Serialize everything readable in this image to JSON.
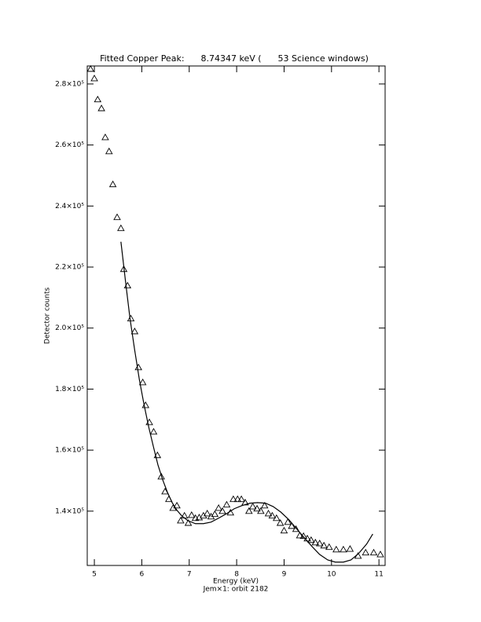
{
  "chart_data": {
    "type": "scatter",
    "title": "Fitted Copper Peak:      8.74347 keV (      53 Science windows)",
    "x_label": "Energy (keV)",
    "subtitle": "Jem×1: orbit 2182",
    "y_label": "Detector counts",
    "xlim": [
      4.85,
      11.13
    ],
    "ylim": [
      122200,
      285900
    ],
    "xticks": [
      5,
      6,
      7,
      8,
      9,
      10,
      11
    ],
    "yticks": [
      {
        "value": 140000,
        "label": "1.4×10⁵"
      },
      {
        "value": 160000,
        "label": "1.6×10⁵"
      },
      {
        "value": 180000,
        "label": "1.8×10⁵"
      },
      {
        "value": 200000,
        "label": "2.0×10⁵"
      },
      {
        "value": 220000,
        "label": "2.2×10⁵"
      },
      {
        "value": 240000,
        "label": "2.4×10⁵"
      },
      {
        "value": 260000,
        "label": "2.6×10⁵"
      },
      {
        "value": 280000,
        "label": "2.8×10⁵"
      }
    ],
    "color": "#000000",
    "series": [
      {
        "type": "scatter",
        "x": [
          4.92,
          5.0,
          5.07,
          5.15,
          5.23,
          5.31,
          5.39,
          5.48,
          5.56,
          5.62,
          5.7,
          5.77,
          5.85,
          5.93,
          6.02,
          6.08,
          6.16,
          6.25,
          6.33,
          6.41,
          6.49,
          6.57,
          6.66,
          6.74,
          6.82,
          6.9,
          6.98,
          7.05,
          7.13,
          7.21,
          7.3,
          7.38,
          7.46,
          7.54,
          7.62,
          7.7,
          7.79,
          7.87,
          7.93,
          8.02,
          8.1,
          8.18,
          8.26,
          8.34,
          8.43,
          8.51,
          8.59,
          8.67,
          8.75,
          8.84,
          8.92,
          9.0,
          9.08,
          9.16,
          9.25,
          9.33,
          9.41,
          9.49,
          9.57,
          9.66,
          9.75,
          9.84,
          9.95,
          10.1,
          10.25,
          10.39,
          10.56,
          10.72,
          10.89,
          11.03
        ],
        "values": [
          284900,
          281800,
          274900,
          272000,
          262500,
          257900,
          247100,
          236300,
          232700,
          219300,
          213900,
          203100,
          198900,
          187100,
          182200,
          174700,
          169100,
          166000,
          158300,
          151300,
          146400,
          143900,
          141000,
          141800,
          136900,
          138500,
          136100,
          138700,
          137700,
          137900,
          138500,
          139200,
          138200,
          139000,
          141000,
          140000,
          142100,
          139500,
          143900,
          143900,
          143900,
          142800,
          140000,
          141500,
          140800,
          140000,
          141800,
          139200,
          138500,
          137700,
          136100,
          133600,
          136400,
          135100,
          134100,
          132000,
          131800,
          131000,
          130500,
          129700,
          129400,
          128700,
          128200,
          127400,
          127400,
          127600,
          125300,
          126400,
          126400,
          125800
        ]
      },
      {
        "type": "line",
        "x": [
          5.56,
          5.66,
          5.75,
          5.85,
          5.95,
          6.05,
          6.15,
          6.25,
          6.34,
          6.44,
          6.54,
          6.64,
          6.74,
          6.84,
          6.97,
          7.13,
          7.3,
          7.46,
          7.62,
          7.79,
          7.95,
          8.11,
          8.28,
          8.44,
          8.61,
          8.77,
          8.93,
          9.1,
          9.26,
          9.43,
          9.59,
          9.75,
          9.92,
          10.08,
          10.25,
          10.41,
          10.57,
          10.74,
          10.87
        ],
        "values": [
          228300,
          214900,
          203300,
          192800,
          183000,
          174700,
          167300,
          160800,
          155200,
          150300,
          146200,
          142800,
          140300,
          138500,
          136900,
          135900,
          135900,
          136400,
          137700,
          139200,
          140800,
          141800,
          142600,
          142800,
          142600,
          141500,
          139700,
          137200,
          134300,
          131200,
          128400,
          125800,
          124000,
          123300,
          123300,
          124000,
          126100,
          129200,
          132500
        ]
      }
    ]
  }
}
